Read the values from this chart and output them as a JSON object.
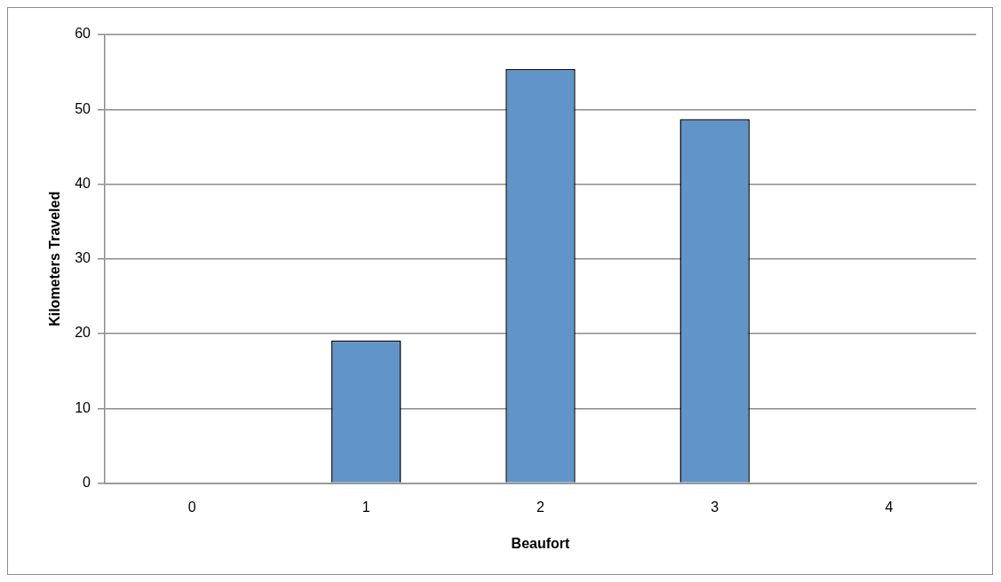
{
  "chart_data": {
    "type": "bar",
    "xlabel": "Beaufort",
    "ylabel": "Kilometers Traveled",
    "categories": [
      "0",
      "1",
      "2",
      "3",
      "4"
    ],
    "values": [
      0,
      19.1,
      55.4,
      48.7,
      0
    ],
    "color": "#6194c8",
    "ylim": [
      0,
      60
    ],
    "yticks": [
      0,
      10,
      20,
      30,
      40,
      50,
      60
    ],
    "grid": "y",
    "legend": false
  }
}
